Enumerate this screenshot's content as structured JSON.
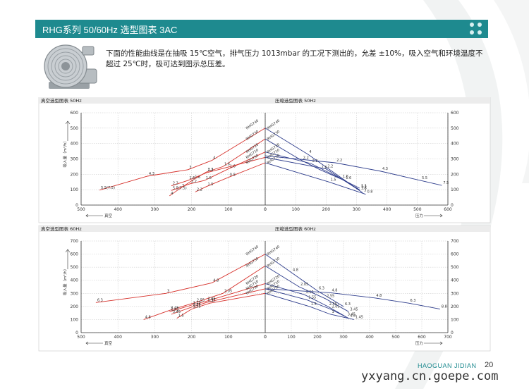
{
  "header": {
    "title": "RHG系列 50/60Hz 选型图表 3AC"
  },
  "description": "下面的性能曲线是在抽吸 15℃空气，排气压力 1013mbar 的工况下测出的，允差 ±10%，吸入空气和环境温度不超过 25℃时，极可达到图示总压差。",
  "footer": {
    "brand": "HAOGUAN JIDIAN",
    "page": "20",
    "watermark": "yxyang.cn.goepe.com"
  },
  "colors": {
    "header": "#1e8a8f",
    "vacuum": "#d6322c",
    "pressure": "#2e3d8c"
  },
  "chart_data": [
    {
      "panel": "50Hz",
      "vacuum": {
        "title": "真空选型图表 50Hz",
        "type": "line",
        "ylabel": "吸入量（m³/h）",
        "xunit": "真空",
        "xlim": [
          500,
          0
        ],
        "ylim": [
          0,
          600
        ],
        "xticks": [
          "500",
          "400",
          "300",
          "200",
          "100",
          "0"
        ],
        "yticks": [
          "0",
          "100",
          "200",
          "300",
          "400",
          "500",
          "600"
        ],
        "series": [
          {
            "name": "RHG740",
            "points": [
              [
                450,
                97
              ],
              [
                320,
                188
              ],
              [
                210,
                230
              ],
              [
                145,
                290
              ],
              [
                0,
                500
              ]
            ],
            "labels": [
              "5.5(7.5)",
              "4.3",
              "3",
              "4",
              ""
            ]
          },
          {
            "name": "RHG730",
            "points": [
              [
                260,
                60
              ],
              [
                230,
                110
              ],
              [
                195,
                165
              ],
              [
                160,
                215
              ],
              [
                115,
                250
              ],
              [
                0,
                430
              ]
            ],
            "labels": [
              "4",
              "3",
              "1.6",
              "2.2",
              "1.6",
              ""
            ]
          },
          {
            "name": "RHG720",
            "points": [
              [
                255,
                95
              ],
              [
                205,
                138
              ],
              [
                165,
                160
              ],
              [
                100,
                235
              ],
              [
                0,
                345
              ]
            ],
            "labels": [
              "5.5(7.5)",
              "2.2",
              "1.6",
              "1.6",
              ""
            ]
          },
          {
            "name": "RHG710",
            "points": [
              [
                255,
                125
              ],
              [
                210,
                160
              ],
              [
                160,
                210
              ],
              [
                0,
                310
              ]
            ],
            "labels": [
              "2.2",
              "1.6",
              "1.2",
              ""
            ]
          },
          {
            "name": "RHG790",
            "points": [
              [
                190,
                85
              ],
              [
                160,
                120
              ],
              [
                100,
                180
              ],
              [
                0,
                275
              ]
            ],
            "labels": [
              "2.2",
              "1.5",
              "0.8",
              ""
            ]
          }
        ]
      },
      "pressure": {
        "title": "压缩选型图表 50Hz",
        "type": "line",
        "ylabel": "吸入量（m³/h）",
        "xunit": "压力",
        "xlim": [
          0,
          600
        ],
        "ylim": [
          0,
          600
        ],
        "xticks": [
          "0",
          "100",
          "200",
          "300",
          "400",
          "500",
          "600"
        ],
        "yticks": [
          "0",
          "100",
          "200",
          "300",
          "400",
          "500",
          "600"
        ],
        "series": [
          {
            "name": "RHG740",
            "points": [
              [
                0,
                500
              ],
              [
                140,
                330
              ],
              [
                320,
                80
              ]
            ],
            "labels": [
              "",
              "4",
              "3"
            ]
          },
          {
            "name": "RHG730",
            "points": [
              [
                0,
                430
              ],
              [
                120,
                290
              ],
              [
                180,
                230
              ],
              [
                260,
                160
              ],
              [
                310,
                110
              ]
            ],
            "labels": [
              "",
              "2.2",
              "1.6",
              "1.6",
              "1.1"
            ]
          },
          {
            "name": "RHG720",
            "points": [
              [
                0,
                345
              ],
              [
                150,
                270
              ],
              [
                250,
                170
              ],
              [
                310,
                100
              ]
            ],
            "labels": [
              "",
              "2.2",
              "1.6",
              "1.2"
            ]
          },
          {
            "name": "RHG710",
            "points": [
              [
                0,
                310
              ],
              [
                200,
                235
              ],
              [
                310,
                95
              ]
            ],
            "labels": [
              "",
              "2.2",
              "1.6"
            ]
          },
          {
            "name": "RHG790",
            "points": [
              [
                0,
                275
              ],
              [
                210,
                150
              ],
              [
                330,
                70
              ]
            ],
            "labels": [
              "",
              "1.5",
              "0.8"
            ]
          },
          {
            "name": "",
            "points": [
              [
                0,
                320
              ],
              [
                230,
                275
              ],
              [
                380,
                220
              ],
              [
                510,
                160
              ],
              [
                580,
                128
              ]
            ],
            "labels": [
              "",
              "2.2",
              "4.3",
              "5.5",
              "7.5"
            ]
          }
        ]
      }
    },
    {
      "panel": "60Hz",
      "vacuum": {
        "title": "真空选型图表 60Hz",
        "type": "line",
        "ylabel": "吸入量（m³/h）",
        "xunit": "真空",
        "xlim": [
          500,
          0
        ],
        "ylim": [
          0,
          700
        ],
        "xticks": [
          "500",
          "400",
          "300",
          "200",
          "100",
          "0"
        ],
        "yticks": [
          "0",
          "100",
          "200",
          "300",
          "400",
          "500",
          "600",
          "700"
        ],
        "series": [
          {
            "name": "RHG740",
            "points": [
              [
                460,
                230
              ],
              [
                270,
                300
              ],
              [
                145,
                380
              ],
              [
                0,
                600
              ]
            ],
            "labels": [
              "6.3",
              "3",
              "4.8",
              ""
            ]
          },
          {
            "name": "RHG730",
            "points": [
              [
                330,
                100
              ],
              [
                260,
                170
              ],
              [
                190,
                230
              ],
              [
                115,
                300
              ],
              [
                0,
                510
              ]
            ],
            "labels": [
              "4.8",
              "3.45",
              "2.55",
              "2.05",
              ""
            ]
          },
          {
            "name": "RHG720",
            "points": [
              [
                260,
                160
              ],
              [
                200,
                210
              ],
              [
                160,
                240
              ],
              [
                0,
                375
              ]
            ],
            "labels": [
              "1.45",
              "1.55",
              "2.05",
              ""
            ]
          },
          {
            "name": "RHG710",
            "points": [
              [
                255,
                140
              ],
              [
                200,
                195
              ],
              [
                160,
                230
              ],
              [
                0,
                335
              ]
            ],
            "labels": [
              "3.45",
              "2.55",
              "1.55",
              ""
            ]
          },
          {
            "name": "RHG790",
            "points": [
              [
                240,
                110
              ],
              [
                200,
                180
              ],
              [
                150,
                225
              ],
              [
                0,
                300
              ]
            ],
            "labels": [
              "1.5",
              "1.55",
              "1",
              ""
            ]
          }
        ]
      },
      "pressure": {
        "title": "压缩选型图表 60Hz",
        "type": "line",
        "ylabel": "吸入量（m³/h）",
        "xunit": "压力",
        "xlim": [
          0,
          700
        ],
        "ylim": [
          0,
          700
        ],
        "xticks": [
          "0",
          "100",
          "200",
          "300",
          "400",
          "500",
          "600",
          "700"
        ],
        "yticks": [
          "0",
          "100",
          "200",
          "300",
          "400",
          "500",
          "600",
          "700"
        ],
        "series": [
          {
            "name": "RHG740",
            "points": [
              [
                0,
                600
              ],
              [
                100,
                460
              ],
              [
                200,
                320
              ],
              [
                300,
                200
              ]
            ],
            "labels": [
              "",
              "4.8",
              "6.3",
              "6.3"
            ]
          },
          {
            "name": "RHG730",
            "points": [
              [
                0,
                510
              ],
              [
                130,
                350
              ],
              [
                230,
                260
              ],
              [
                320,
                160
              ]
            ],
            "labels": [
              "",
              "2.05",
              "2.55",
              "3.45"
            ]
          },
          {
            "name": "RHG720",
            "points": [
              [
                0,
                375
              ],
              [
                150,
                290
              ],
              [
                240,
                200
              ],
              [
                310,
                120
              ]
            ],
            "labels": [
              "",
              "1.55",
              "2.55",
              "3.45"
            ]
          },
          {
            "name": "RHG710",
            "points": [
              [
                0,
                335
              ],
              [
                160,
                250
              ],
              [
                250,
                180
              ],
              [
                320,
                110
              ]
            ],
            "labels": [
              "",
              "1.55",
              "2.05",
              "4.8"
            ]
          },
          {
            "name": "RHG790",
            "points": [
              [
                0,
                300
              ],
              [
                170,
                200
              ],
              [
                250,
                140
              ],
              [
                340,
                100
              ]
            ],
            "labels": [
              "",
              "1.5",
              "1",
              "1.45"
            ]
          },
          {
            "name": "",
            "points": [
              [
                0,
                335
              ],
              [
                250,
                305
              ],
              [
                420,
                265
              ],
              [
                550,
                225
              ],
              [
                670,
                180
              ]
            ],
            "labels": [
              "",
              "4.8",
              "4.8",
              "6.3",
              "8.8"
            ]
          }
        ]
      }
    }
  ]
}
